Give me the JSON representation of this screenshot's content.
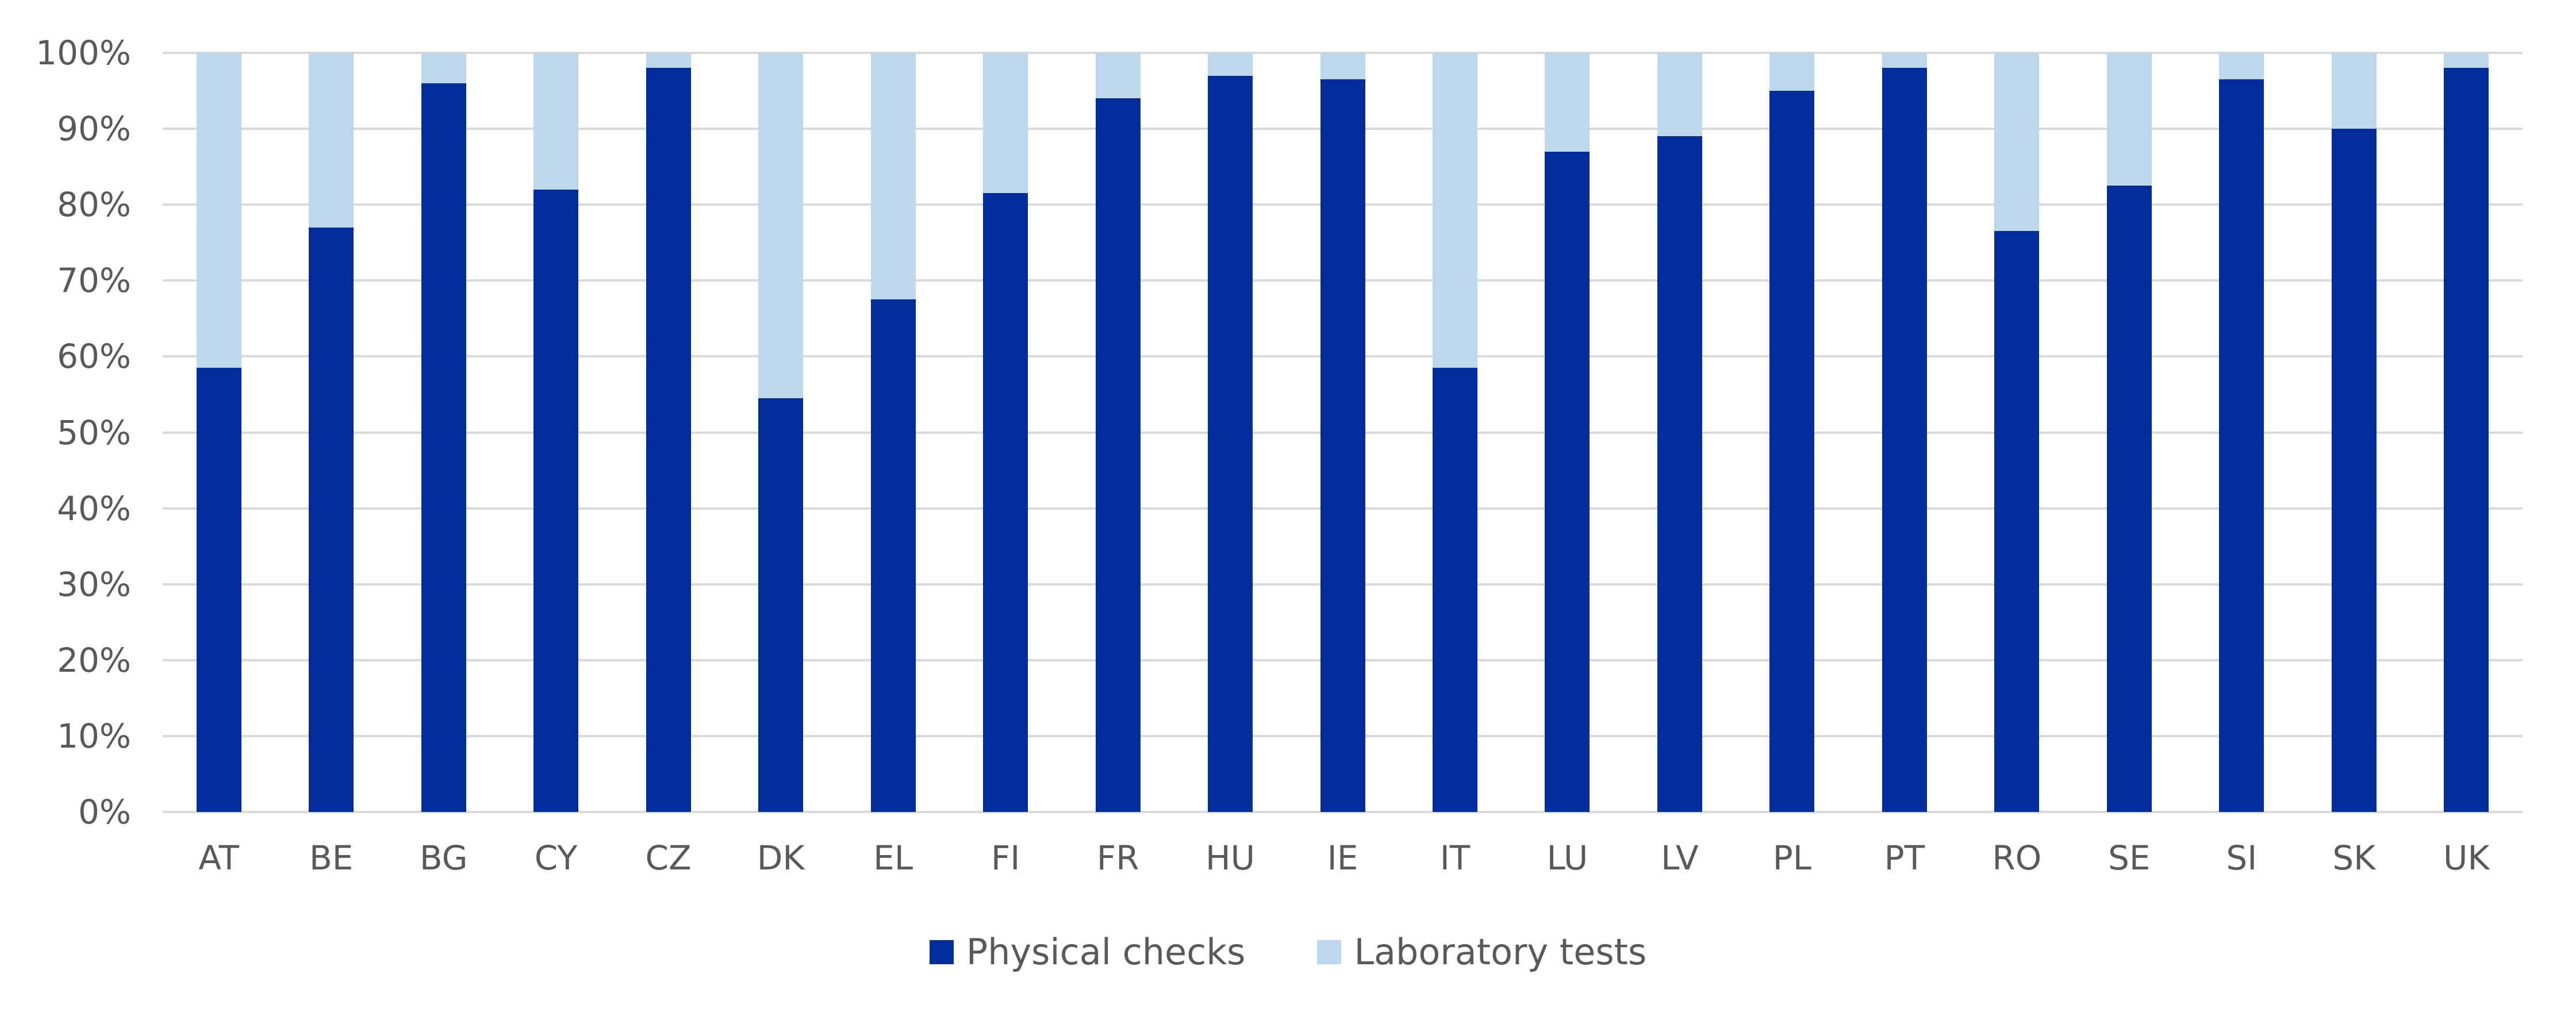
{
  "chart_data": {
    "type": "bar",
    "stacked": true,
    "percent_stacked": true,
    "title": "",
    "xlabel": "",
    "ylabel": "",
    "categories": [
      "AT",
      "BE",
      "BG",
      "CY",
      "CZ",
      "DK",
      "EL",
      "FI",
      "FR",
      "HU",
      "IE",
      "IT",
      "LU",
      "LV",
      "PL",
      "PT",
      "RO",
      "SE",
      "SI",
      "SK",
      "UK"
    ],
    "series": [
      {
        "name": "Physical checks",
        "color": "#002D9B",
        "values": [
          58.5,
          77,
          96,
          82,
          98,
          54.5,
          67.5,
          81.5,
          94,
          97,
          96.5,
          58.5,
          87,
          89,
          95,
          98,
          76.5,
          82.5,
          96.5,
          90,
          98
        ]
      },
      {
        "name": "Laboratory tests",
        "color": "#BDD7EE",
        "values": [
          41.5,
          23,
          4,
          18,
          2,
          45.5,
          32.5,
          18.5,
          6,
          3,
          3.5,
          41.5,
          13,
          11,
          5,
          2,
          23.5,
          17.5,
          3.5,
          10,
          2
        ]
      }
    ],
    "ylim": [
      0,
      100
    ],
    "y_ticks": [
      "0%",
      "10%",
      "20%",
      "30%",
      "40%",
      "50%",
      "60%",
      "70%",
      "80%",
      "90%",
      "100%"
    ],
    "grid": "horizontal",
    "gridline_color": "#D9D9D9",
    "axis_text_color": "#595959",
    "legend_position": "bottom"
  }
}
